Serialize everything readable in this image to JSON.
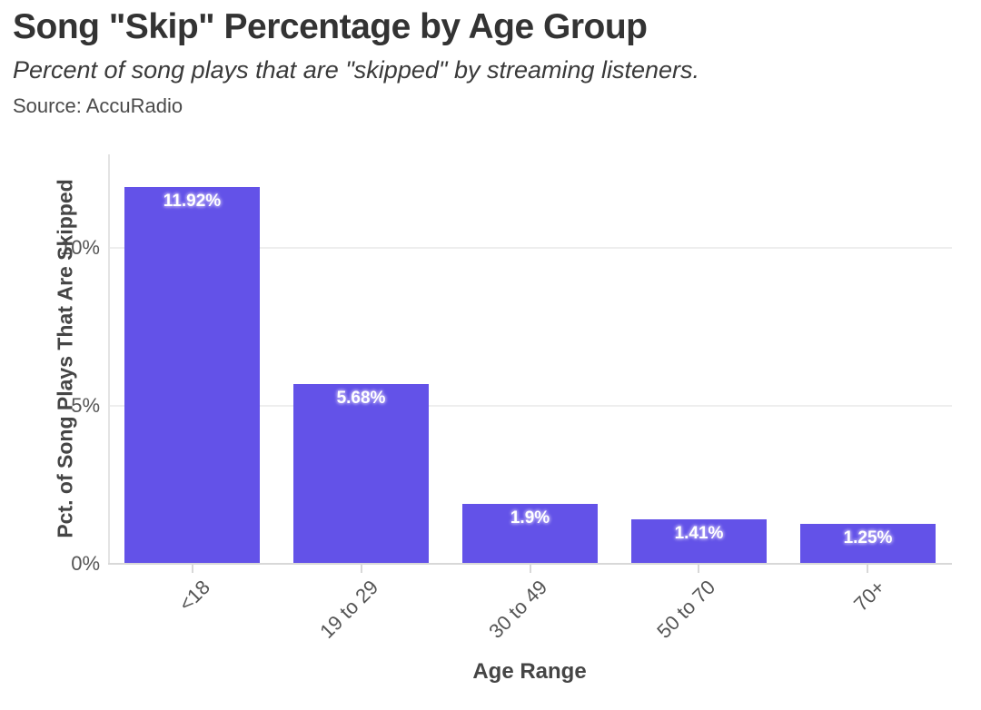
{
  "chart_data": {
    "type": "bar",
    "title": "Song \"Skip\" Percentage by Age Group",
    "subtitle": "Percent of song plays that are \"skipped\" by streaming listeners.",
    "source": "Source: AccuRadio",
    "categories": [
      "<18",
      "19 to 29",
      "30 to 49",
      "50 to 70",
      "70+"
    ],
    "values": [
      11.92,
      5.68,
      1.9,
      1.41,
      1.25
    ],
    "bar_labels": [
      "11.92%",
      "5.68%",
      "1.9%",
      "1.41%",
      "1.25%"
    ],
    "xlabel": "Age Range",
    "ylabel": "Pct. of Song Plays That Are Skipped",
    "yticks": [
      {
        "value": 0,
        "label": "0%"
      },
      {
        "value": 5,
        "label": "5%"
      },
      {
        "value": 10,
        "label": "10%"
      }
    ],
    "ylim": [
      0,
      12.95
    ],
    "grid": "horizontal-only",
    "legend_position": "none",
    "colors": {
      "bar": "#6352e8",
      "bar_label_text": "#ffffff",
      "bar_label_halo": "#a99df2",
      "gridline": "#eeeeee",
      "axis_line": "#e4e4e4",
      "baseline": "#d8d8d8",
      "tick_text": "#555555",
      "axis_title_text": "#454545",
      "title_text": "#333333"
    }
  }
}
